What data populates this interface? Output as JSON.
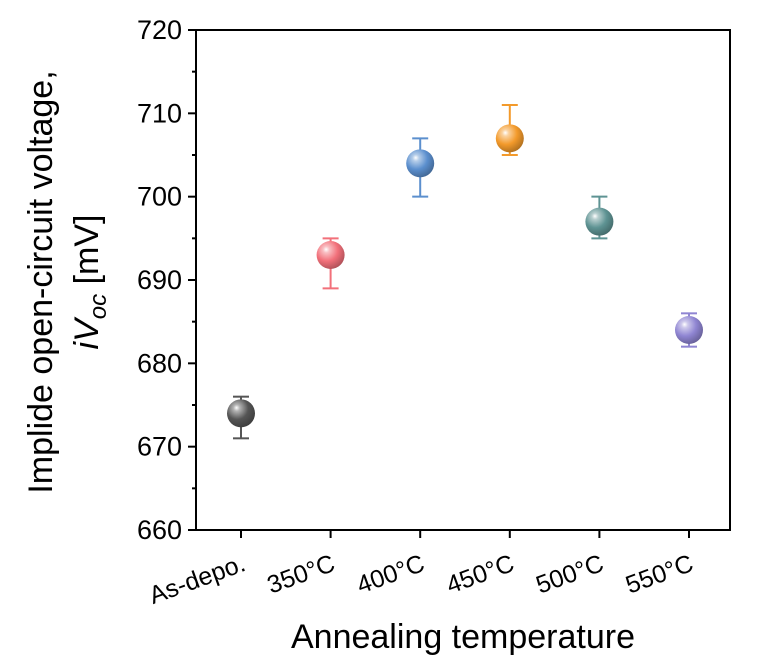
{
  "chart_data": {
    "type": "scatter",
    "xlabel": "Annealing temperature",
    "ylabel_line1": "Implide open-circuit voltage,",
    "ylabel_line2": {
      "italic_main": "iV",
      "italic_sub": "oc",
      "unit": " [mV]"
    },
    "categories": [
      "As-depo.",
      "350°C",
      "400°C",
      "450°C",
      "500°C",
      "550°C"
    ],
    "values": [
      674,
      693,
      704,
      707,
      697,
      684
    ],
    "error_upper": [
      676,
      695,
      707,
      711,
      700,
      686
    ],
    "error_lower": [
      671,
      689,
      700,
      705,
      695,
      682
    ],
    "colors": [
      "#555555",
      "#f2707a",
      "#5b8fce",
      "#f39a2b",
      "#5e9393",
      "#8f85d2"
    ],
    "ylim": [
      660,
      720
    ],
    "yticks": [
      660,
      670,
      680,
      690,
      700,
      710,
      720
    ],
    "grid": false,
    "legend": "none"
  }
}
